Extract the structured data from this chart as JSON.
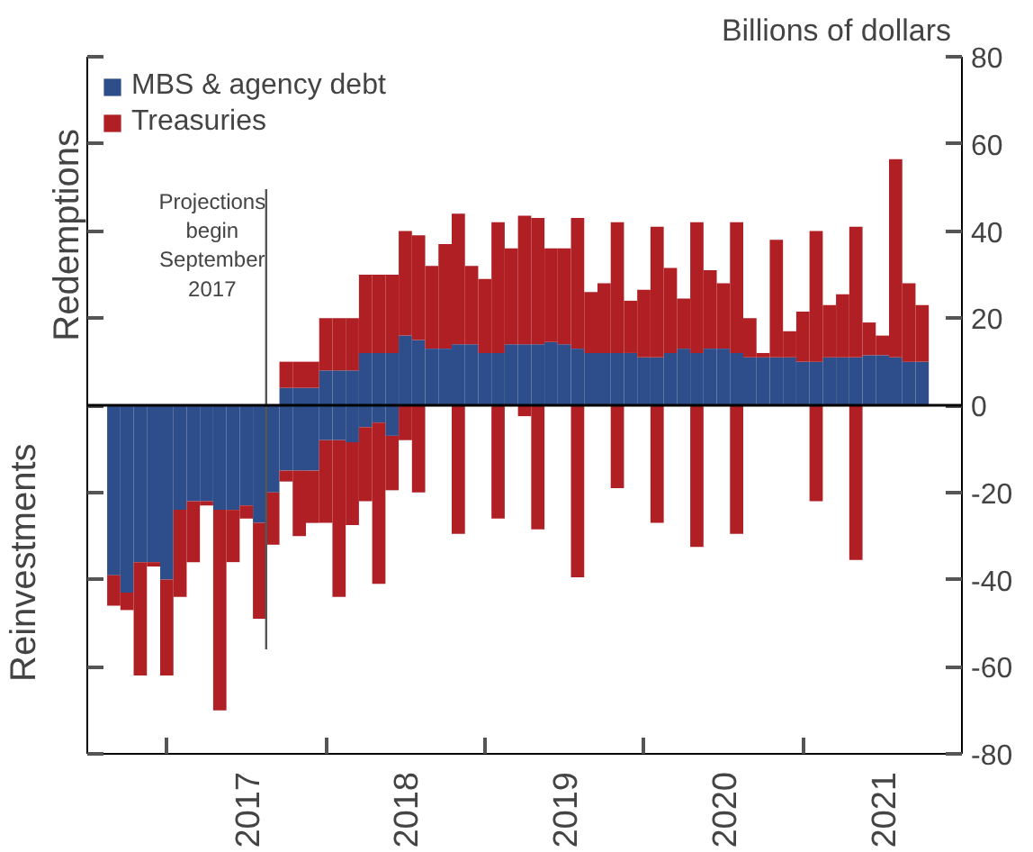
{
  "chart_data": {
    "type": "bar",
    "stacked": true,
    "ylabel": "Billions of dollars",
    "annotations": [
      "Redemptions",
      "Reinvestments"
    ],
    "x": [
      "2016-09",
      "2016-10",
      "2016-11",
      "2016-12",
      "2017-01",
      "2017-02",
      "2017-03",
      "2017-04",
      "2017-05",
      "2017-06",
      "2017-07",
      "2017-08",
      "2017-09",
      "2017-10",
      "2017-11",
      "2017-12",
      "2018-01",
      "2018-02",
      "2018-03",
      "2018-04",
      "2018-05",
      "2018-06",
      "2018-07",
      "2018-08",
      "2018-09",
      "2018-10",
      "2018-11",
      "2018-12",
      "2019-01",
      "2019-02",
      "2019-03",
      "2019-04",
      "2019-05",
      "2019-06",
      "2019-07",
      "2019-08",
      "2019-09",
      "2019-10",
      "2019-11",
      "2019-12",
      "2020-01",
      "2020-02",
      "2020-03",
      "2020-04",
      "2020-05",
      "2020-06",
      "2020-07",
      "2020-08",
      "2020-09",
      "2020-10",
      "2020-11",
      "2020-12",
      "2021-01",
      "2021-02",
      "2021-03",
      "2021-04",
      "2021-05",
      "2021-06",
      "2021-07",
      "2021-08",
      "2021-09",
      "2021-10"
    ],
    "series": [
      {
        "name": "MBS & agency debt",
        "color": "#2d4e8a",
        "values": [
          0,
          0,
          0,
          0,
          0,
          0,
          0,
          0,
          0,
          0,
          0,
          0,
          0,
          4,
          4,
          4,
          8,
          8,
          8,
          12,
          12,
          12,
          16,
          15,
          13,
          13,
          14,
          14,
          12,
          12,
          14,
          14,
          14,
          14.5,
          14,
          13,
          12,
          12,
          12,
          12,
          11,
          11,
          12,
          13,
          12,
          13,
          13,
          12,
          11,
          11,
          11,
          11,
          10,
          10,
          11,
          11,
          11,
          11.5,
          11.5,
          11,
          10,
          10
        ]
      },
      {
        "name": "Treasuries",
        "color": "#b01f24",
        "values": [
          0,
          0,
          0,
          0,
          0,
          0,
          0,
          0,
          0,
          0,
          0,
          0,
          0,
          6,
          6,
          6,
          12,
          12,
          12,
          18,
          18,
          18,
          24,
          24,
          19,
          24,
          30,
          18,
          17,
          30,
          22,
          29.5,
          29,
          21.5,
          22,
          30,
          14,
          16,
          30,
          12,
          15.5,
          30,
          19.5,
          11.5,
          30,
          18,
          15,
          30,
          9,
          1,
          27,
          6,
          11.5,
          30,
          12,
          14.5,
          30,
          7.5,
          4.5,
          45.5,
          18,
          13
        ]
      },
      {
        "color": "#2d4e8a",
        "values": [
          -39,
          -43,
          -36,
          -36,
          -40,
          -24,
          -22,
          -22,
          -24,
          -24,
          -23,
          -27,
          -20,
          -15,
          -15,
          -15,
          -8,
          -8,
          -8.5,
          -5,
          -4,
          -7,
          0,
          0,
          0,
          0,
          0,
          0,
          0,
          0,
          0,
          0,
          0,
          0,
          0,
          0,
          0,
          0,
          0,
          0,
          0,
          0,
          0,
          0,
          0,
          0,
          0,
          0,
          0,
          0,
          0,
          0,
          0,
          0,
          0,
          0,
          0,
          0,
          0,
          0,
          0,
          0
        ]
      },
      {
        "color": "#b01f24",
        "values": [
          -7,
          -4,
          -26,
          -1,
          -22,
          -20,
          -14,
          -1,
          -46,
          -12,
          -3,
          -22,
          -12,
          -2.5,
          -15,
          -12,
          -19,
          -36,
          -19,
          -17,
          -37,
          -12.5,
          -8,
          -20,
          0,
          0,
          -29.5,
          0,
          0,
          -26,
          0,
          -2.5,
          -28.5,
          0,
          0,
          -39.5,
          0,
          0,
          -19,
          0,
          0,
          -27,
          0,
          0,
          -32.5,
          0,
          0,
          -29.5,
          0,
          0,
          0,
          0,
          0,
          -22,
          0,
          0,
          -35.5,
          0,
          0,
          0,
          0,
          0
        ]
      }
    ],
    "xlim": [
      "2016-07",
      "2022-01"
    ],
    "xticks": [
      {
        "value": "2017-01",
        "label": null
      },
      {
        "value": "2017-07",
        "label": "2017"
      },
      {
        "value": "2018-01",
        "label": null
      },
      {
        "value": "2018-07",
        "label": "2018"
      },
      {
        "value": "2019-01",
        "label": null
      },
      {
        "value": "2019-07",
        "label": "2019"
      },
      {
        "value": "2020-01",
        "label": null
      },
      {
        "value": "2020-07",
        "label": "2020"
      },
      {
        "value": "2021-01",
        "label": null
      },
      {
        "value": "2021-07",
        "label": "2021"
      }
    ],
    "ylim": [
      -80,
      80
    ],
    "yticks": [
      -80,
      -60,
      -40,
      -20,
      0,
      20,
      40,
      60,
      80
    ],
    "ref_lines": [
      {
        "axis": "y",
        "value": 0,
        "color": "#000000"
      },
      {
        "axis": "x",
        "value": "2017-08-16",
        "label": "Projections\nbegin\nSeptember\n2017",
        "color": "#555555"
      }
    ],
    "legend": "top left",
    "grid": false
  }
}
